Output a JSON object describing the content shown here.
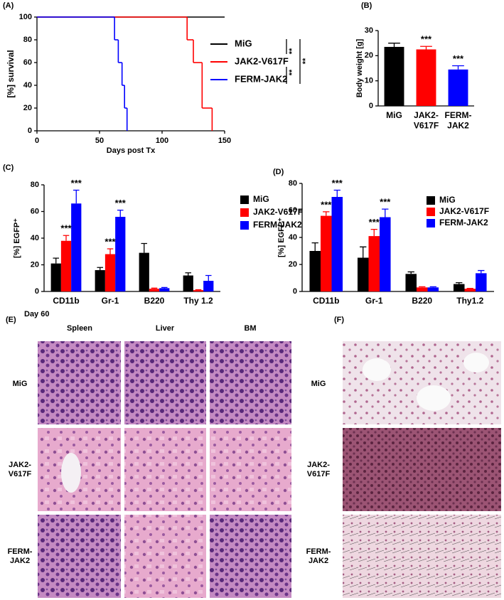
{
  "chart_data": [
    {
      "type": "step",
      "label": "(A)",
      "ylabel": "[%] survival",
      "xlabel": "Days post Tx",
      "xlim": [
        0,
        150
      ],
      "xticks": [
        0,
        50,
        100,
        150
      ],
      "ylim": [
        0,
        100
      ],
      "yticks": [
        0,
        20,
        40,
        60,
        80,
        100
      ],
      "series": [
        {
          "name": "MiG",
          "color": "#000000",
          "x": [
            0,
            150
          ],
          "values": [
            100,
            100
          ]
        },
        {
          "name": "JAK2-V617F",
          "color": "#ff0000",
          "x": [
            0,
            120,
            125,
            132,
            140
          ],
          "values": [
            100,
            80,
            60,
            20,
            0
          ]
        },
        {
          "name": "FERM-JAK2",
          "color": "#0000ff",
          "x": [
            0,
            62,
            65,
            68,
            70,
            72
          ],
          "values": [
            100,
            80,
            60,
            40,
            20,
            0
          ]
        }
      ],
      "annotations": [
        "**",
        "**",
        "**"
      ]
    },
    {
      "type": "bar",
      "label": "(B)",
      "ylabel": "Body weight [g]",
      "categories": [
        "MiG",
        "JAK2-\nV617F",
        "FERM-\nJAK2"
      ],
      "values": [
        23.5,
        22.5,
        14.5
      ],
      "errors": [
        1.5,
        1.2,
        1.5
      ],
      "colors": [
        "#000000",
        "#ff0000",
        "#0000ff"
      ],
      "ylim": [
        0,
        30
      ],
      "yticks": [
        0,
        10,
        20,
        30
      ],
      "annotations": [
        "***",
        "***"
      ]
    },
    {
      "type": "bar",
      "label": "(C)",
      "ylabel": "[%] EGFP⁺",
      "categories": [
        "CD11b",
        "Gr-1",
        "B220",
        "Thy 1.2"
      ],
      "ylim": [
        0,
        80
      ],
      "yticks": [
        0,
        20,
        40,
        60,
        80
      ],
      "series": [
        {
          "name": "MiG",
          "color": "#000000",
          "values": [
            21,
            16,
            29,
            12
          ],
          "errors": [
            4,
            2,
            7,
            2
          ]
        },
        {
          "name": "JAK2-V617F",
          "color": "#ff0000",
          "values": [
            38,
            28,
            2,
            1
          ],
          "errors": [
            4,
            4,
            0.5,
            0.3
          ]
        },
        {
          "name": "FERM-JAK2",
          "color": "#0000ff",
          "values": [
            66,
            56,
            2.5,
            8
          ],
          "errors": [
            10,
            5,
            0.5,
            4
          ]
        }
      ],
      "annotations": [
        "***",
        "***",
        "***",
        "***"
      ]
    },
    {
      "type": "bar",
      "label": "(D)",
      "ylabel": "[%] EGFP⁺",
      "categories": [
        "CD11b",
        "Gr-1",
        "B220",
        "Thy1.2"
      ],
      "ylim": [
        0,
        80
      ],
      "yticks": [
        0,
        20,
        40,
        60,
        80
      ],
      "series": [
        {
          "name": "MiG",
          "color": "#000000",
          "values": [
            30,
            25,
            13,
            5.5
          ],
          "errors": [
            6,
            8,
            1.5,
            1
          ]
        },
        {
          "name": "JAK2-V617F",
          "color": "#ff0000",
          "values": [
            56,
            41,
            3,
            2
          ],
          "errors": [
            3,
            5,
            0.5,
            0.3
          ]
        },
        {
          "name": "FERM-JAK2",
          "color": "#0000ff",
          "values": [
            70,
            55,
            3,
            13.5
          ],
          "errors": [
            5,
            6,
            0.5,
            2
          ]
        }
      ],
      "annotations": [
        "***",
        "***",
        "***",
        "***"
      ]
    }
  ],
  "panel_e": {
    "label": "(E)",
    "day": "Day 60",
    "columns": [
      "Spleen",
      "Liver",
      "BM"
    ],
    "rows": [
      "MiG",
      "JAK2-\nV617F",
      "FERM-\nJAK2"
    ]
  },
  "panel_f": {
    "label": "(F)",
    "rows": [
      "MiG",
      "JAK2-\nV617F",
      "FERM-\nJAK2"
    ]
  }
}
